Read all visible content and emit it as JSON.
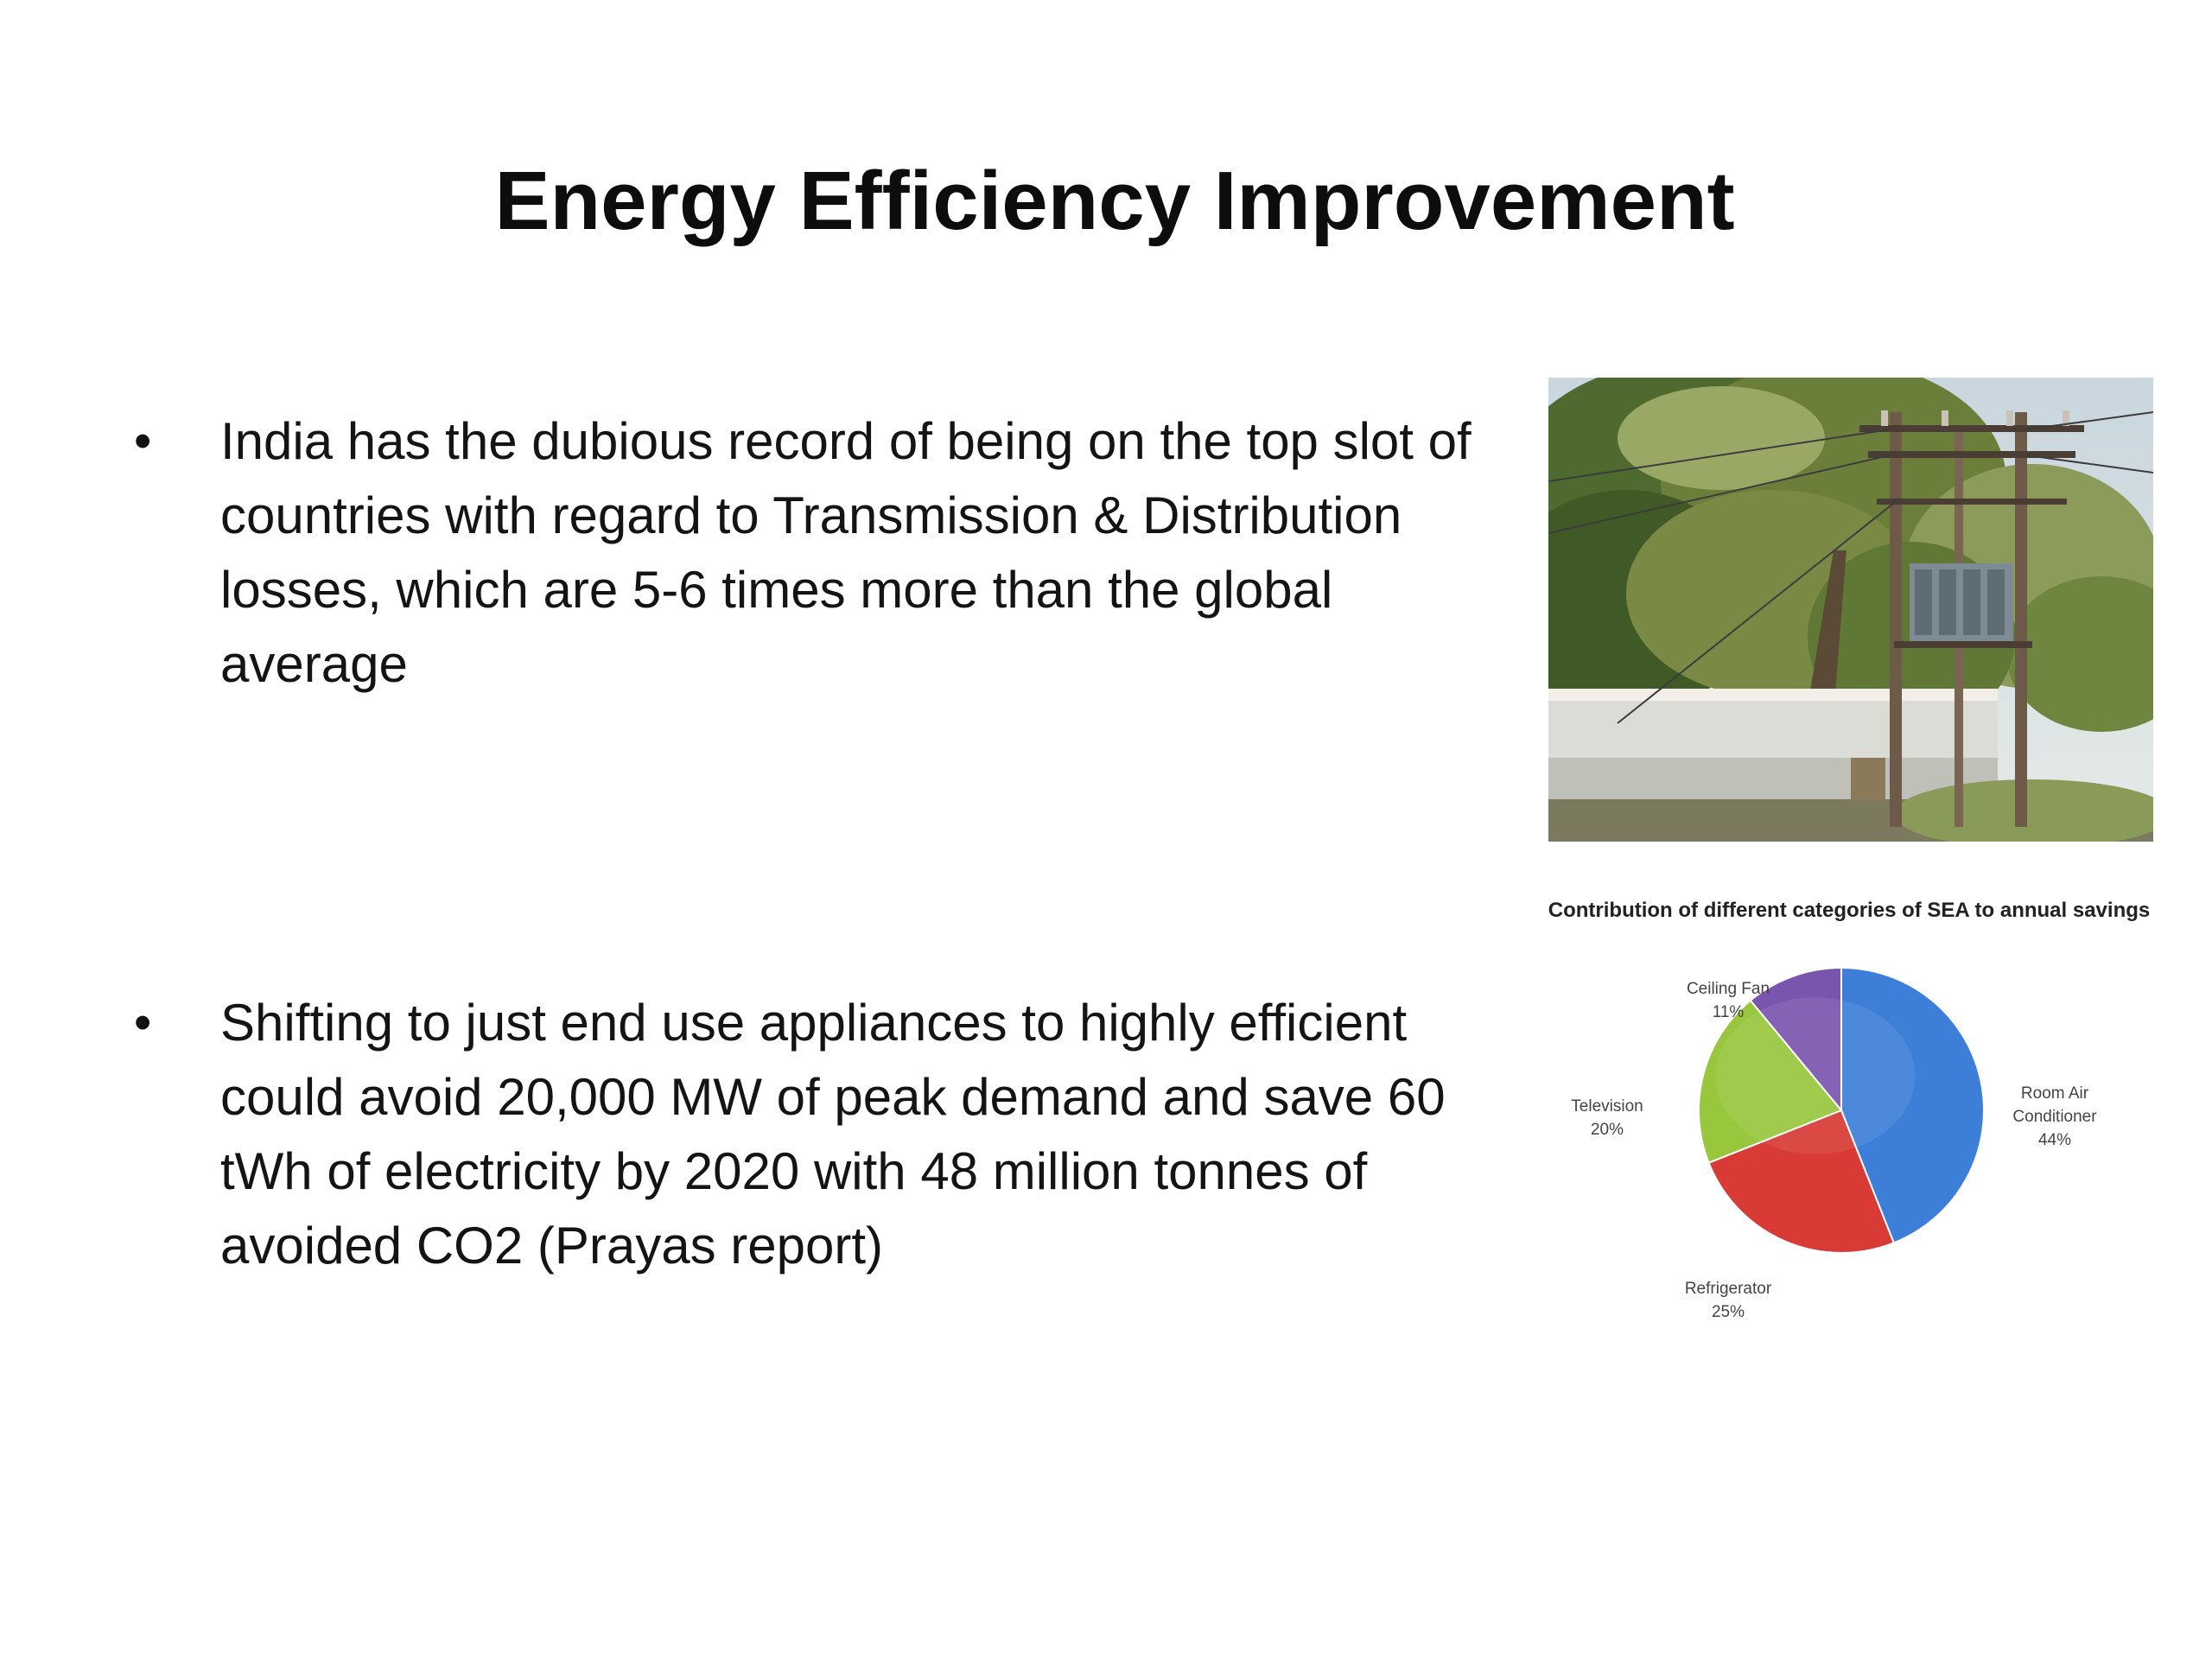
{
  "slide": {
    "title": "Energy Efficiency Improvement",
    "bullets": [
      {
        "symbol": "•",
        "text": "India has the dubious record of being on the top slot of countries with regard to Transmission & Distribution losses, which are 5-6 times more than the global average"
      },
      {
        "symbol": "•",
        "text": "Shifting to just end use appliances  to highly efficient could avoid 20,000 MW of peak demand and save 60 tWh of electricity by 2020 with 48 million tonnes of avoided CO2 (Prayas report)"
      }
    ],
    "photo": {
      "icon": "utility-pole-transformer-photo"
    }
  },
  "chart_data": {
    "type": "pie",
    "title": "Contribution of different categories of SEA to annual savings",
    "slices": [
      {
        "label": "Room Air Conditioner",
        "value": 44,
        "value_text": "44%",
        "color": "#3d7fd8"
      },
      {
        "label": "Refrigerator",
        "value": 25,
        "value_text": "25%",
        "color": "#d83a35"
      },
      {
        "label": "Television",
        "value": 20,
        "value_text": "20%",
        "color": "#98c63c"
      },
      {
        "label": "Ceiling Fan",
        "value": 11,
        "value_text": "11%",
        "color": "#7a55ae"
      }
    ]
  }
}
